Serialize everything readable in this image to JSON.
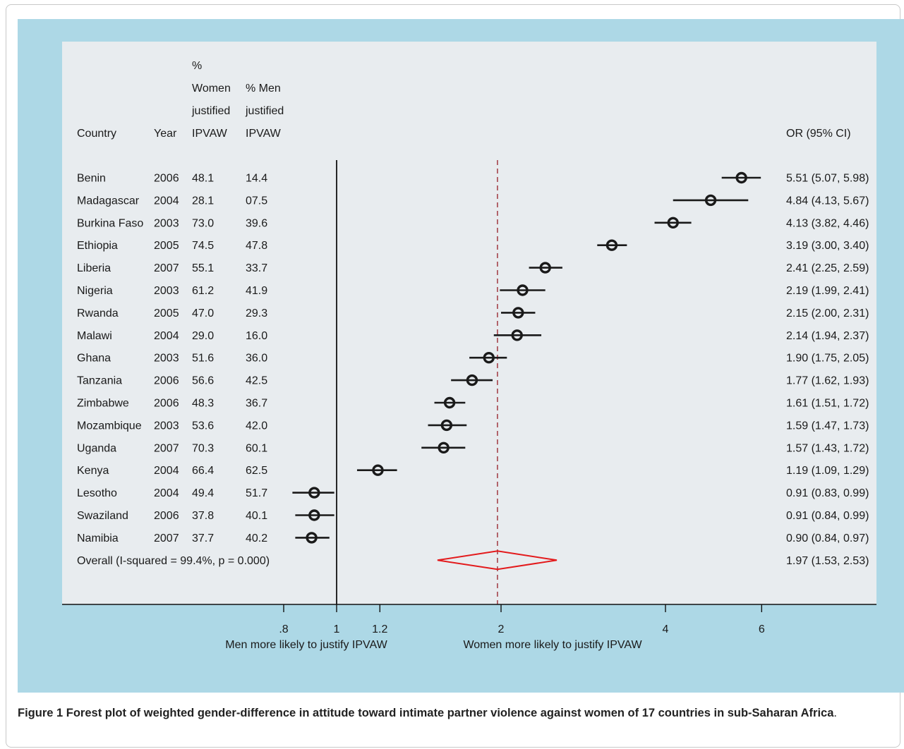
{
  "chart_data": {
    "type": "forest",
    "scale": "log",
    "headers": {
      "country": "Country",
      "year": "Year",
      "women": [
        "%",
        "Women",
        "justified",
        "IPVAW"
      ],
      "men": [
        "% Men",
        "justified",
        "IPVAW"
      ],
      "or": "OR (95% CI)"
    },
    "rows": [
      {
        "country": "Benin",
        "year": "2006",
        "women": "48.1",
        "men": "14.4",
        "or": 5.51,
        "lo": 5.07,
        "hi": 5.98,
        "label": "5.51 (5.07, 5.98)"
      },
      {
        "country": "Madagascar",
        "year": "2004",
        "women": "28.1",
        "men": "07.5",
        "or": 4.84,
        "lo": 4.13,
        "hi": 5.67,
        "label": "4.84 (4.13, 5.67)"
      },
      {
        "country": "Burkina Faso",
        "year": "2003",
        "women": "73.0",
        "men": "39.6",
        "or": 4.13,
        "lo": 3.82,
        "hi": 4.46,
        "label": "4.13 (3.82, 4.46)"
      },
      {
        "country": "Ethiopia",
        "year": "2005",
        "women": "74.5",
        "men": "47.8",
        "or": 3.19,
        "lo": 3.0,
        "hi": 3.4,
        "label": "3.19 (3.00, 3.40)"
      },
      {
        "country": "Liberia",
        "year": "2007",
        "women": "55.1",
        "men": "33.7",
        "or": 2.41,
        "lo": 2.25,
        "hi": 2.59,
        "label": "2.41 (2.25, 2.59)"
      },
      {
        "country": "Nigeria",
        "year": "2003",
        "women": "61.2",
        "men": "41.9",
        "or": 2.19,
        "lo": 1.99,
        "hi": 2.41,
        "label": "2.19 (1.99, 2.41)"
      },
      {
        "country": "Rwanda",
        "year": "2005",
        "women": "47.0",
        "men": "29.3",
        "or": 2.15,
        "lo": 2.0,
        "hi": 2.31,
        "label": "2.15 (2.00, 2.31)"
      },
      {
        "country": "Malawi",
        "year": "2004",
        "women": "29.0",
        "men": "16.0",
        "or": 2.14,
        "lo": 1.94,
        "hi": 2.37,
        "label": "2.14 (1.94, 2.37)"
      },
      {
        "country": "Ghana",
        "year": "2003",
        "women": "51.6",
        "men": "36.0",
        "or": 1.9,
        "lo": 1.75,
        "hi": 2.05,
        "label": "1.90 (1.75, 2.05)"
      },
      {
        "country": "Tanzania",
        "year": "2006",
        "women": "56.6",
        "men": "42.5",
        "or": 1.77,
        "lo": 1.62,
        "hi": 1.93,
        "label": "1.77 (1.62, 1.93)"
      },
      {
        "country": "Zimbabwe",
        "year": "2006",
        "women": "48.3",
        "men": "36.7",
        "or": 1.61,
        "lo": 1.51,
        "hi": 1.72,
        "label": "1.61 (1.51, 1.72)"
      },
      {
        "country": "Mozambique",
        "year": "2003",
        "women": "53.6",
        "men": "42.0",
        "or": 1.59,
        "lo": 1.47,
        "hi": 1.73,
        "label": "1.59 (1.47, 1.73)"
      },
      {
        "country": "Uganda",
        "year": "2007",
        "women": "70.3",
        "men": "60.1",
        "or": 1.57,
        "lo": 1.43,
        "hi": 1.72,
        "label": "1.57 (1.43, 1.72)"
      },
      {
        "country": "Kenya",
        "year": "2004",
        "women": "66.4",
        "men": "62.5",
        "or": 1.19,
        "lo": 1.09,
        "hi": 1.29,
        "label": "1.19 (1.09, 1.29)"
      },
      {
        "country": "Lesotho",
        "year": "2004",
        "women": "49.4",
        "men": "51.7",
        "or": 0.91,
        "lo": 0.83,
        "hi": 0.99,
        "label": "0.91 (0.83, 0.99)"
      },
      {
        "country": "Swaziland",
        "year": "2006",
        "women": "37.8",
        "men": "40.1",
        "or": 0.91,
        "lo": 0.84,
        "hi": 0.99,
        "label": "0.91 (0.84, 0.99)"
      },
      {
        "country": "Namibia",
        "year": "2007",
        "women": "37.7",
        "men": "40.2",
        "or": 0.9,
        "lo": 0.84,
        "hi": 0.97,
        "label": "0.90 (0.84, 0.97)"
      }
    ],
    "overall": {
      "text": "Overall  (I-squared = 99.4%, p = 0.000)",
      "or": 1.97,
      "lo": 1.53,
      "hi": 2.53,
      "label": "1.97 (1.53, 2.53)"
    },
    "null_line": 1,
    "x_ticks": [
      {
        "value": 0.8,
        "label": ".8"
      },
      {
        "value": 1,
        "label": "1"
      },
      {
        "value": 1.2,
        "label": "1.2"
      },
      {
        "value": 2,
        "label": "2"
      },
      {
        "value": 4,
        "label": "4"
      },
      {
        "value": 6,
        "label": "6"
      }
    ],
    "xlabel_left": "Men more likely to justify IPVAW",
    "xlabel_right": "Women more likely to justify IPVAW",
    "colors": {
      "marker": "#1a1a1a",
      "overall_diamond": "#e31a1c",
      "overall_line": "#a4424b"
    }
  },
  "caption": {
    "bold": "Figure 1 Forest plot of weighted gender-difference in attitude toward intimate partner violence against women of 17 countries in sub-Saharan Africa",
    "rest": "."
  }
}
